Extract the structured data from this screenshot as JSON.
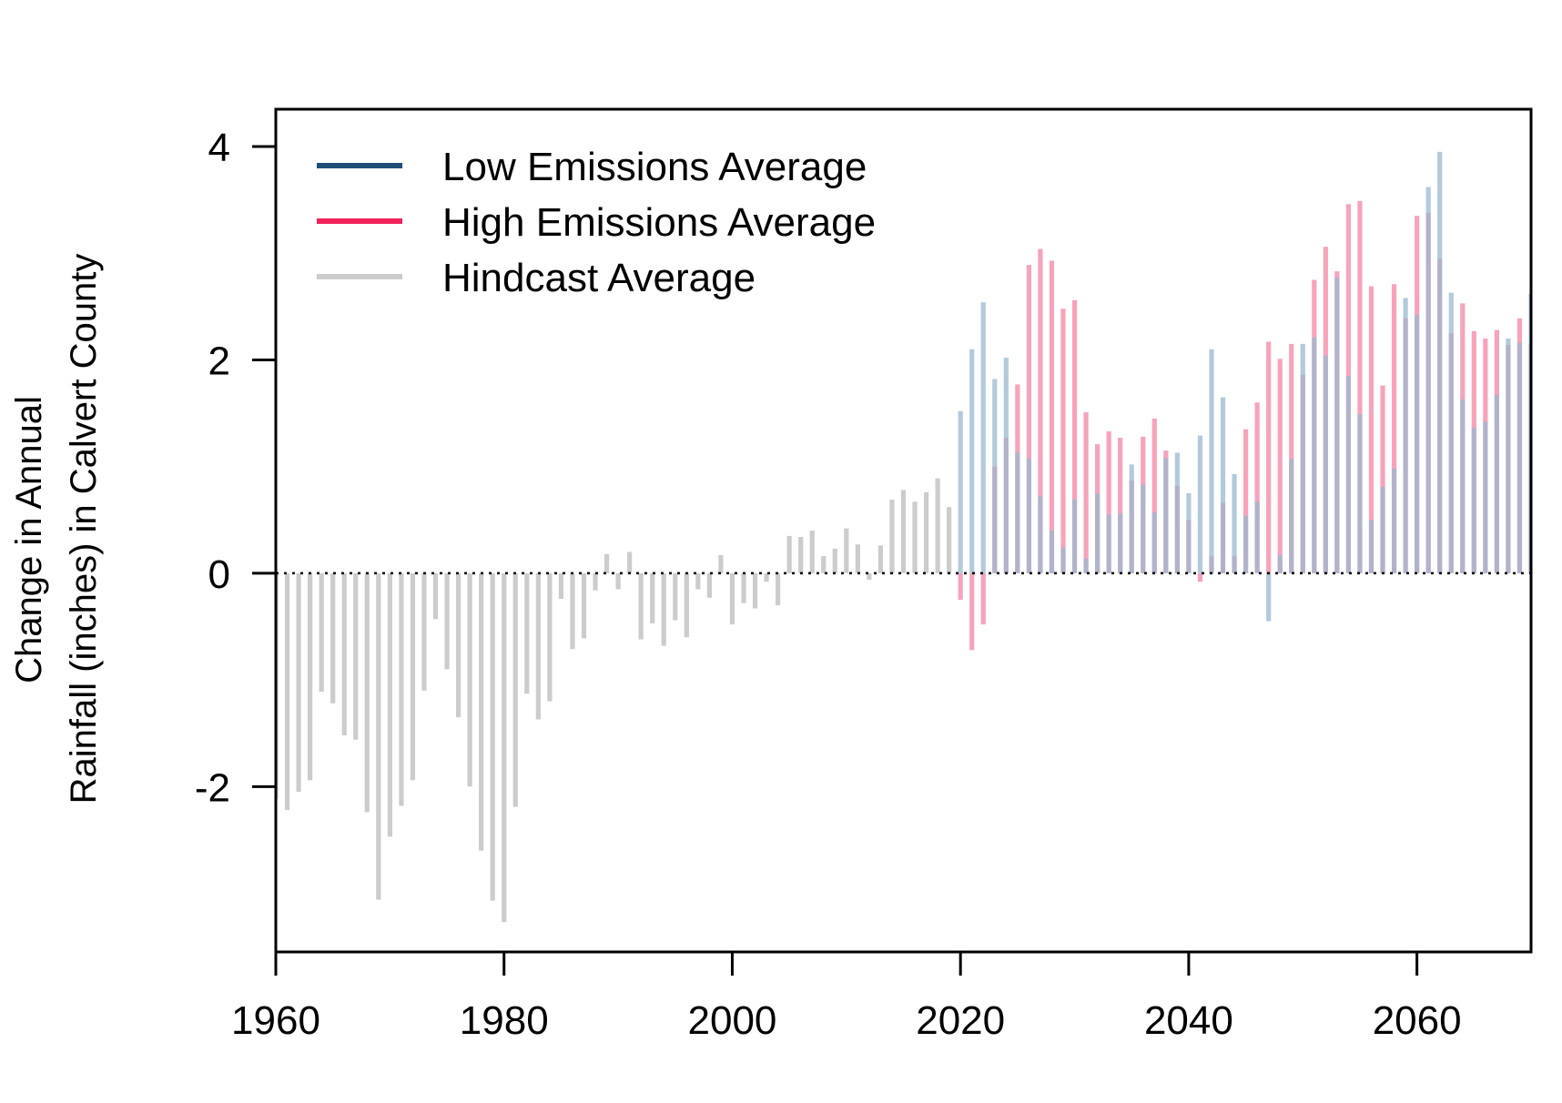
{
  "chart_data": {
    "type": "bar",
    "title": "",
    "xlabel": "",
    "ylabel_lines": [
      "Change in Annual",
      "Rainfall (inches) in Calvert County"
    ],
    "xlim": [
      1960,
      2070
    ],
    "ylim": [
      -3.55,
      4.35
    ],
    "xticks": [
      1960,
      1980,
      2000,
      2020,
      2040,
      2060
    ],
    "yticks": [
      -2,
      0,
      2,
      4
    ],
    "zero_line": "dotted",
    "grid": false,
    "legend_position": "top-left",
    "series": [
      {
        "name": "Low Emissions Average",
        "legend_color": "#1f4e79",
        "bar_color": "#9ab8d0",
        "x": [
          2020,
          2021,
          2022,
          2023,
          2024,
          2025,
          2026,
          2027,
          2028,
          2029,
          2030,
          2031,
          2032,
          2033,
          2034,
          2035,
          2036,
          2037,
          2038,
          2039,
          2040,
          2041,
          2042,
          2043,
          2044,
          2045,
          2046,
          2047,
          2048,
          2049,
          2050,
          2051,
          2052,
          2053,
          2054,
          2055,
          2056,
          2057,
          2058,
          2059,
          2060,
          2061,
          2062,
          2063,
          2064,
          2065,
          2066,
          2067,
          2068,
          2069,
          2070
        ],
        "values": [
          1.52,
          2.1,
          2.54,
          1.82,
          2.02,
          1.13,
          1.08,
          0.72,
          0.4,
          0.24,
          0.69,
          0.14,
          0.75,
          0.55,
          0.56,
          1.02,
          0.83,
          0.57,
          1.08,
          1.13,
          0.75,
          1.29,
          2.1,
          1.65,
          0.93,
          0.54,
          0.67,
          -0.45,
          0.17,
          1.07,
          2.15,
          2.21,
          2.04,
          2.77,
          1.85,
          1.49,
          0.5,
          0.81,
          0.98,
          2.58,
          2.42,
          3.62,
          3.95,
          2.63,
          1.63,
          1.36,
          1.42,
          1.67,
          2.2,
          2.16,
          2.62
        ]
      },
      {
        "name": "High Emissions Average",
        "legend_color": "#f0245a",
        "bar_color": "#f7a3bb",
        "x": [
          2020,
          2021,
          2022,
          2023,
          2024,
          2025,
          2026,
          2027,
          2028,
          2029,
          2030,
          2031,
          2032,
          2033,
          2034,
          2035,
          2036,
          2037,
          2038,
          2039,
          2040,
          2041,
          2042,
          2043,
          2044,
          2045,
          2046,
          2047,
          2048,
          2049,
          2050,
          2051,
          2052,
          2053,
          2054,
          2055,
          2056,
          2057,
          2058,
          2059,
          2060,
          2061,
          2062,
          2063,
          2064,
          2065,
          2066,
          2067,
          2068,
          2069,
          2070
        ],
        "values": [
          -0.25,
          -0.72,
          -0.48,
          1.0,
          1.27,
          1.77,
          2.89,
          3.04,
          2.93,
          2.48,
          2.56,
          1.51,
          1.21,
          1.33,
          1.27,
          0.87,
          1.28,
          1.45,
          1.15,
          0.82,
          0.5,
          -0.08,
          0.16,
          0.66,
          0.16,
          1.35,
          1.6,
          2.17,
          2.01,
          2.15,
          1.86,
          2.75,
          3.06,
          2.83,
          3.46,
          3.49,
          2.69,
          1.76,
          2.71,
          2.39,
          3.35,
          3.38,
          2.95,
          2.25,
          2.53,
          2.27,
          2.2,
          2.28,
          2.14,
          2.39,
          2.15
        ]
      },
      {
        "name": "Hindcast Average",
        "legend_color": "#cccccc",
        "bar_color": "#cccccc",
        "x": [
          1960,
          1961,
          1962,
          1963,
          1964,
          1965,
          1966,
          1967,
          1968,
          1969,
          1970,
          1971,
          1972,
          1973,
          1974,
          1975,
          1976,
          1977,
          1978,
          1979,
          1980,
          1981,
          1982,
          1983,
          1984,
          1985,
          1986,
          1987,
          1988,
          1989,
          1990,
          1991,
          1992,
          1993,
          1994,
          1995,
          1996,
          1997,
          1998,
          1999,
          2000,
          2001,
          2002,
          2003,
          2004,
          2005,
          2006,
          2007,
          2008,
          2009,
          2010,
          2011,
          2012,
          2013,
          2014,
          2015,
          2016,
          2017,
          2018,
          2019
        ],
        "values": [
          -2.12,
          -2.22,
          -2.05,
          -1.94,
          -1.11,
          -1.22,
          -1.52,
          -1.56,
          -2.24,
          -3.06,
          -2.47,
          -2.18,
          -1.94,
          -1.1,
          -0.43,
          -0.9,
          -1.35,
          -2.0,
          -2.6,
          -3.07,
          -3.27,
          -2.19,
          -1.13,
          -1.37,
          -1.2,
          -0.24,
          -0.71,
          -0.61,
          -0.16,
          0.18,
          -0.15,
          0.2,
          -0.62,
          -0.47,
          -0.68,
          -0.44,
          -0.6,
          -0.15,
          -0.23,
          0.17,
          -0.48,
          -0.28,
          -0.33,
          -0.08,
          -0.3,
          0.35,
          0.34,
          0.4,
          0.16,
          0.23,
          0.42,
          0.27,
          -0.06,
          0.26,
          0.69,
          0.78,
          0.67,
          0.76,
          0.89,
          0.62
        ]
      }
    ]
  }
}
